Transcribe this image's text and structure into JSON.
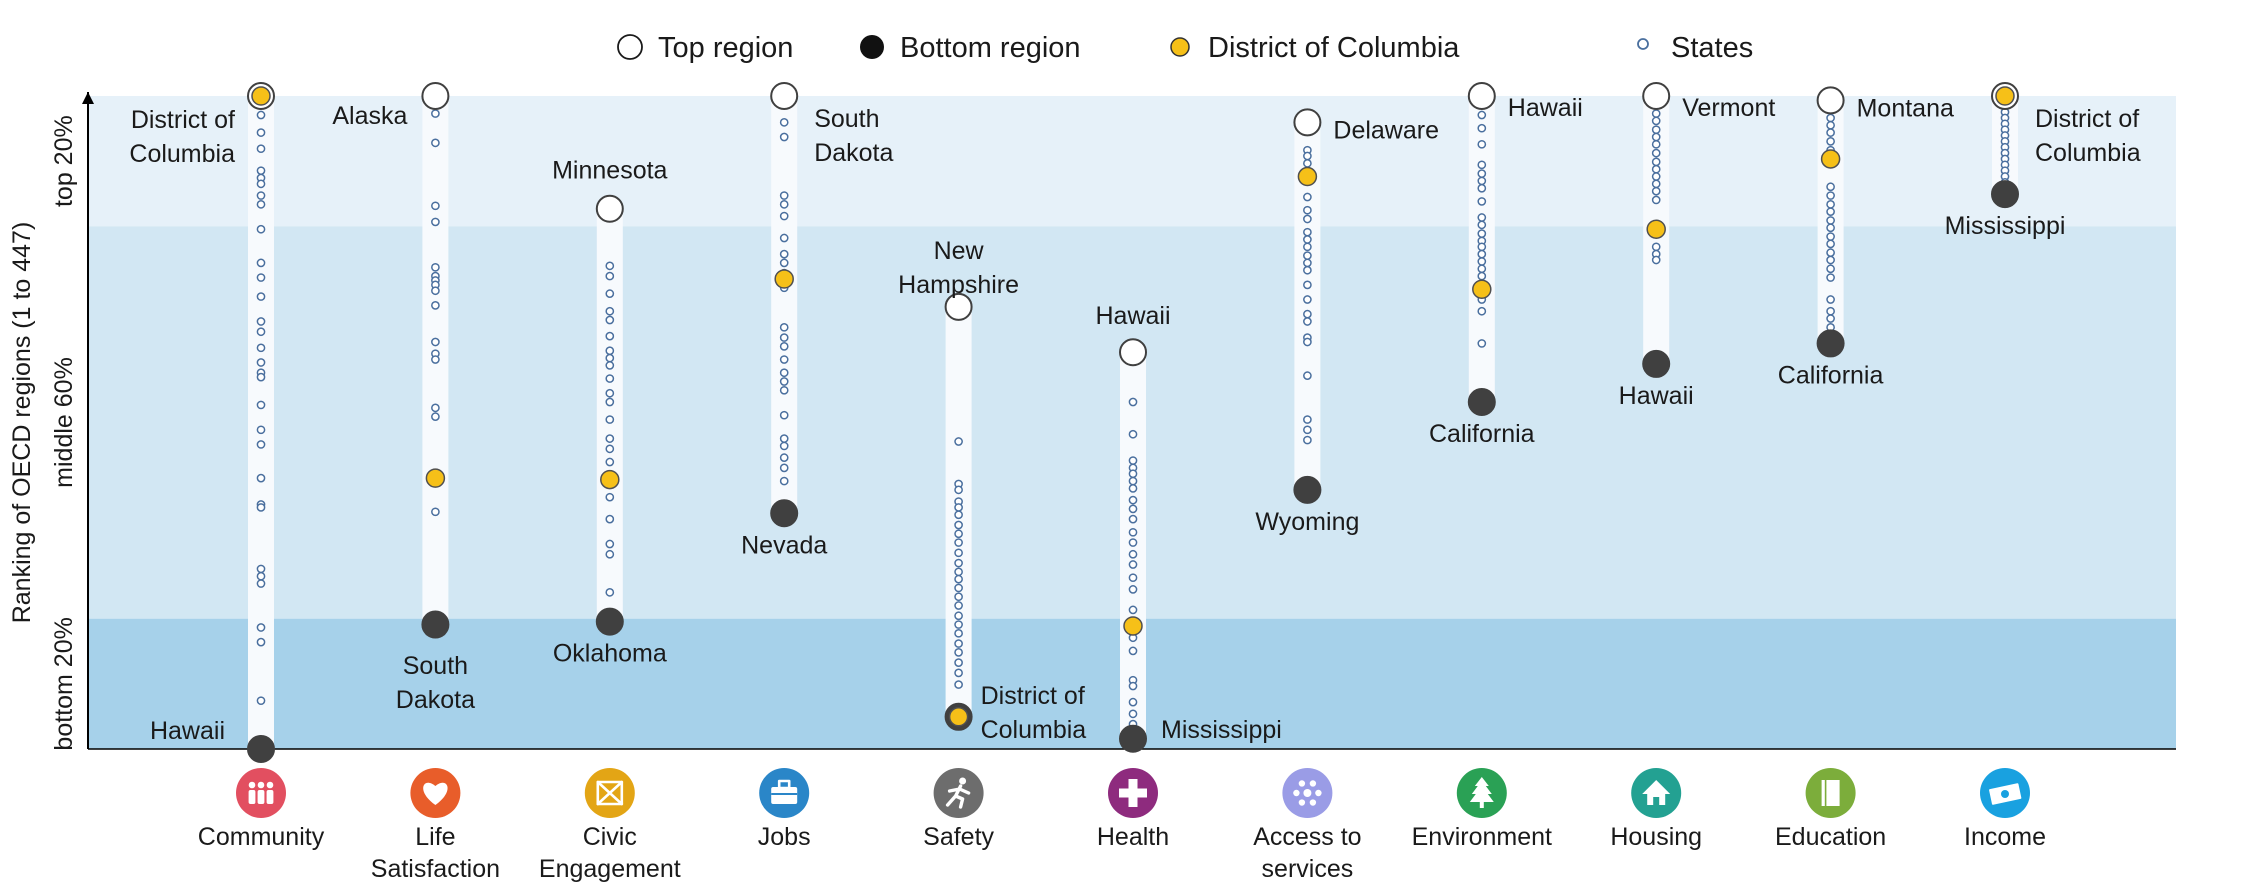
{
  "chart_data": {
    "type": "scatter",
    "title": "",
    "ylabel": "Ranking of OECD regions (1 to 447)",
    "ylim": [
      1,
      447
    ],
    "y_inverted": true,
    "band_labels": [
      "top 20%",
      "middle 60%",
      "bottom 20%"
    ],
    "band_bounds": [
      1,
      90,
      358,
      447
    ],
    "band_colors": [
      "#e6f1f9",
      "#d2e7f3",
      "#a6d1ea"
    ],
    "legend_position": "top",
    "legend": [
      {
        "label": "Top region",
        "symbol": "circle-white"
      },
      {
        "label": "Bottom region",
        "symbol": "circle-black"
      },
      {
        "label": "District of Columbia",
        "symbol": "circle-gold"
      },
      {
        "label": "States",
        "symbol": "small-circle"
      }
    ],
    "colors": {
      "top": "#ffffff",
      "bottom": "#404040",
      "dc": "#f6c018",
      "states": "#4a6f9e"
    },
    "categories": [
      {
        "name": [
          "Community"
        ],
        "icon": "community-icon",
        "icon_color": "#e24f60",
        "top": {
          "rank": 1,
          "label": [
            "District of",
            "Columbia"
          ]
        },
        "bottom": {
          "rank": 447,
          "label": [
            "Hawaii"
          ]
        },
        "dc": 1,
        "states": [
          14,
          26,
          37,
          52,
          57,
          61,
          69,
          75,
          92,
          115,
          125,
          138,
          155,
          162,
          173,
          183,
          190,
          193,
          212,
          229,
          239,
          262,
          280,
          282,
          324,
          329,
          334,
          364,
          374,
          414
        ]
      },
      {
        "name": [
          "Life",
          "Satisfaction"
        ],
        "icon": "heart-icon",
        "icon_color": "#e85d2a",
        "top": {
          "rank": 1,
          "label": [
            "Alaska"
          ]
        },
        "bottom": {
          "rank": 362,
          "label": [
            "South",
            "Dakota"
          ]
        },
        "dc": 262,
        "states": [
          13,
          33,
          76,
          87,
          118,
          124,
          127,
          130,
          134,
          144,
          169,
          177,
          181,
          214,
          220,
          285
        ]
      },
      {
        "name": [
          "Civic",
          "Engagement"
        ],
        "icon": "ballot-icon",
        "icon_color": "#e3a515",
        "top": {
          "rank": 78,
          "label": [
            "Minnesota"
          ]
        },
        "bottom": {
          "rank": 360,
          "label": [
            "Oklahoma"
          ]
        },
        "dc": 263,
        "states": [
          117,
          124,
          136,
          148,
          154,
          165,
          175,
          180,
          185,
          194,
          204,
          210,
          222,
          235,
          242,
          251,
          275,
          290,
          307,
          314,
          340
        ]
      },
      {
        "name": [
          "Jobs"
        ],
        "icon": "briefcase-icon",
        "icon_color": "#2a86c8",
        "top": {
          "rank": 1,
          "label": [
            "South",
            "Dakota"
          ]
        },
        "bottom": {
          "rank": 286,
          "label": [
            "Nevada"
          ]
        },
        "dc": 126,
        "states": [
          19,
          29,
          69,
          75,
          83,
          98,
          109,
          115,
          122,
          132,
          159,
          166,
          172,
          181,
          190,
          196,
          202,
          219,
          235,
          240,
          248,
          255,
          264
        ]
      },
      {
        "name": [
          "Safety"
        ],
        "icon": "runner-icon",
        "icon_color": "#6d6d6d",
        "top": {
          "rank": 145,
          "label": [
            "New",
            "Hampshire"
          ]
        },
        "bottom": {
          "rank": 425,
          "label": [
            "District of",
            "Columbia"
          ]
        },
        "dc": 425,
        "states": [
          237,
          266,
          270,
          278,
          282,
          287,
          294,
          300,
          306,
          313,
          320,
          326,
          331,
          337,
          343,
          349,
          356,
          362,
          368,
          375,
          381,
          388,
          395,
          403
        ]
      },
      {
        "name": [
          "Health"
        ],
        "icon": "cross-icon",
        "icon_color": "#8e2b7e",
        "top": {
          "rank": 176,
          "label": [
            "Hawaii"
          ]
        },
        "bottom": {
          "rank": 440,
          "label": [
            "Mississippi"
          ]
        },
        "dc": 363,
        "states": [
          210,
          232,
          250,
          255,
          259,
          264,
          269,
          277,
          283,
          290,
          299,
          306,
          314,
          321,
          330,
          338,
          352,
          371,
          380,
          400,
          404,
          415,
          423,
          430
        ]
      },
      {
        "name": [
          "Access to",
          "services"
        ],
        "icon": "network-icon",
        "icon_color": "#9a9ce6",
        "top": {
          "rank": 19,
          "label": [
            "Delaware"
          ]
        },
        "bottom": {
          "rank": 270,
          "label": [
            "Wyoming"
          ]
        },
        "dc": 56,
        "states": [
          38,
          42,
          47,
          70,
          79,
          85,
          94,
          99,
          104,
          110,
          115,
          120,
          130,
          140,
          150,
          155,
          166,
          169,
          192,
          222,
          229,
          236
        ]
      },
      {
        "name": [
          "Environment"
        ],
        "icon": "tree-icon",
        "icon_color": "#2aa155",
        "top": {
          "rank": 1,
          "label": [
            "Hawaii"
          ]
        },
        "bottom": {
          "rank": 210,
          "label": [
            "California"
          ]
        },
        "dc": 133,
        "states": [
          14,
          23,
          34,
          48,
          54,
          59,
          64,
          73,
          84,
          89,
          95,
          100,
          104,
          109,
          114,
          119,
          124,
          140,
          148,
          170
        ]
      },
      {
        "name": [
          "Housing"
        ],
        "icon": "house-icon",
        "icon_color": "#23a192",
        "top": {
          "rank": 1,
          "label": [
            "Vermont"
          ]
        },
        "bottom": {
          "rank": 184,
          "label": [
            "Hawaii"
          ]
        },
        "dc": 92,
        "states": [
          13,
          18,
          24,
          29,
          34,
          40,
          46,
          51,
          56,
          61,
          66,
          72,
          104,
          109,
          113
        ]
      },
      {
        "name": [
          "Education"
        ],
        "icon": "book-icon",
        "icon_color": "#7cad3b",
        "top": {
          "rank": 4,
          "label": [
            "Montana"
          ]
        },
        "bottom": {
          "rank": 170,
          "label": [
            "California"
          ]
        },
        "dc": 44,
        "states": [
          16,
          21,
          26,
          32,
          38,
          63,
          69,
          75,
          80,
          86,
          91,
          97,
          102,
          108,
          113,
          119,
          125,
          140,
          148,
          153,
          159
        ]
      },
      {
        "name": [
          "Income"
        ],
        "icon": "money-icon",
        "icon_color": "#19a1e0",
        "top": {
          "rank": 1,
          "label": [
            "District of",
            "Columbia"
          ]
        },
        "bottom": {
          "rank": 68,
          "label": [
            "Mississippi"
          ]
        },
        "dc": 1,
        "states": [
          8,
          12,
          16,
          20,
          24,
          28,
          32,
          36,
          40,
          44,
          48,
          52,
          56,
          60
        ]
      }
    ]
  }
}
